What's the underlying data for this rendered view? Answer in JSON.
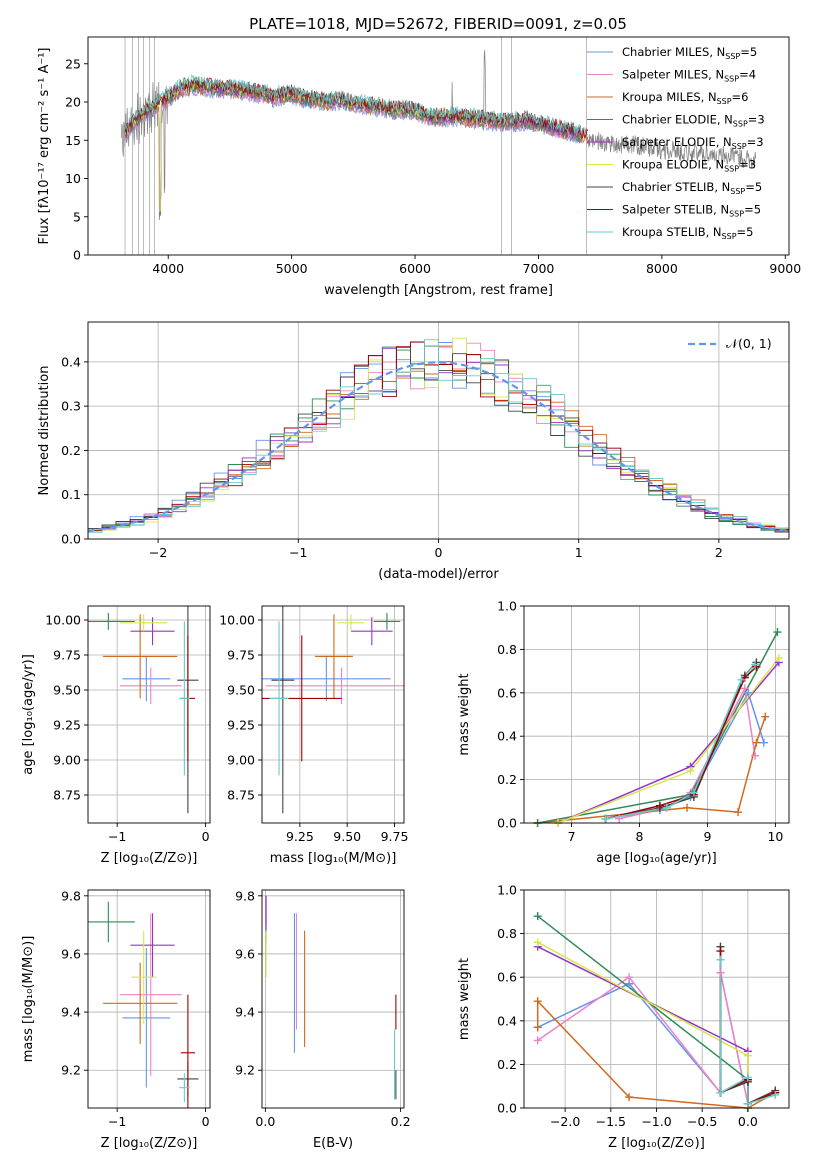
{
  "figure_title": "PLATE=1018, MJD=52672, FIBERID=0091, z=0.05",
  "colors": {
    "data": "#808080",
    "models": [
      "#6495ed",
      "#ee82c8",
      "#d2691e",
      "#2e8b57",
      "#9932cc",
      "#d4e84a",
      "#444444",
      "#a00000",
      "#66cccc"
    ],
    "gauss": "#6495ed"
  },
  "chart_data": [
    {
      "id": "spectrum",
      "type": "line",
      "title": "PLATE=1018, MJD=52672, FIBERID=0091, z=0.05",
      "xlabel": "wavelength [Angstrom, rest frame]",
      "ylabel": "Flux [fλ10⁻¹⁷ erg cm⁻² s⁻¹ A⁻¹]",
      "xlim": [
        3350,
        9030
      ],
      "ylim": [
        0,
        28.5
      ],
      "xticks": [
        4000,
        5000,
        6000,
        7000,
        8000,
        9000
      ],
      "yticks": [
        0,
        5,
        10,
        15,
        20,
        25
      ],
      "grid": false,
      "legend_position": "top-right",
      "legend": [
        {
          "label": "Chabrier MILES, N",
          "sub": "SSP",
          "suffix": "=5"
        },
        {
          "label": "Salpeter MILES, N",
          "sub": "SSP",
          "suffix": "=4"
        },
        {
          "label": "Kroupa MILES, N",
          "sub": "SSP",
          "suffix": "=6"
        },
        {
          "label": "Chabrier ELODIE, N",
          "sub": "SSP",
          "suffix": "=3"
        },
        {
          "label": "Salpeter ELODIE, N",
          "sub": "SSP",
          "suffix": "=3"
        },
        {
          "label": "Kroupa ELODIE, N",
          "sub": "SSP",
          "suffix": "=3"
        },
        {
          "label": "Chabrier STELIB, N",
          "sub": "SSP",
          "suffix": "=5"
        },
        {
          "label": "Salpeter STELIB, N",
          "sub": "SSP",
          "suffix": "=5"
        },
        {
          "label": "Kroupa STELIB, N",
          "sub": "SSP",
          "suffix": "=5"
        }
      ],
      "continuum": {
        "x": [
          3620,
          3700,
          3800,
          3900,
          4000,
          4100,
          4200,
          4300,
          4400,
          4500,
          4600,
          4700,
          4800,
          4850,
          4900,
          5000,
          5100,
          5200,
          5300,
          5400,
          5500,
          5600,
          5700,
          5800,
          5900,
          6000,
          6100,
          6200,
          6300,
          6400,
          6500,
          6600,
          6700,
          6800,
          6900,
          7000,
          7100,
          7200,
          7300,
          7400,
          7500,
          7600,
          7700,
          7800,
          8000,
          8200,
          8400,
          8600,
          8760
        ],
        "y": [
          15.0,
          17.0,
          18.5,
          19.5,
          20.5,
          21.8,
          22.2,
          22.0,
          21.8,
          21.7,
          21.5,
          21.3,
          21.0,
          20.5,
          20.8,
          21.0,
          20.5,
          20.3,
          20.0,
          20.2,
          19.8,
          19.6,
          19.4,
          19.0,
          19.0,
          18.8,
          18.2,
          18.0,
          18.1,
          17.9,
          17.8,
          17.6,
          17.5,
          17.4,
          17.6,
          17.2,
          16.8,
          16.3,
          16.0,
          15.2,
          14.8,
          14.6,
          14.5,
          14.3,
          13.8,
          13.5,
          13.2,
          12.8,
          12.5
        ]
      }
    },
    {
      "id": "residuals",
      "type": "histogram",
      "xlabel": "(data-model)/error",
      "ylabel": "Normed distribution",
      "xlim": [
        -2.5,
        2.5
      ],
      "ylim": [
        0,
        0.49
      ],
      "xticks": [
        -2,
        -1,
        0,
        1,
        2
      ],
      "yticks": [
        0.0,
        0.1,
        0.2,
        0.3,
        0.4
      ],
      "grid": true,
      "legend_position": "top-right",
      "legend": [
        "𝒩(0, 1)"
      ],
      "bin_width": 0.1
    },
    {
      "id": "age-vs-z",
      "type": "errorbar",
      "xlabel": "Z [log₁₀(Z/Z⊙)]",
      "ylabel": "age  [log₁₀(age/yr)]",
      "xlim": [
        -1.33,
        0.05
      ],
      "ylim": [
        8.55,
        10.1
      ],
      "xticks": [
        -1,
        0
      ],
      "yticks": [
        8.75,
        9.0,
        9.25,
        9.5,
        9.75,
        10.0
      ],
      "grid": true,
      "points": [
        {
          "x": -0.67,
          "xerr": 0.27,
          "y": 9.58,
          "yerr": 0.16
        },
        {
          "x": -0.62,
          "xerr": 0.35,
          "y": 9.53,
          "yerr": 0.13
        },
        {
          "x": -0.74,
          "xerr": 0.42,
          "y": 9.74,
          "yerr": 0.3
        },
        {
          "x": -1.1,
          "xerr": 0.3,
          "y": 9.99,
          "yerr": 0.06
        },
        {
          "x": -0.6,
          "xerr": 0.25,
          "y": 9.92,
          "yerr": 0.1
        },
        {
          "x": -0.7,
          "xerr": 0.27,
          "y": 9.98,
          "yerr": 0.06
        },
        {
          "x": -0.2,
          "xerr": 0.12,
          "y": 9.57,
          "yerr": 0.95
        },
        {
          "x": -0.2,
          "xerr": 0.08,
          "y": 9.44,
          "yerr": 0.45
        },
        {
          "x": -0.24,
          "xerr": 0.06,
          "y": 9.44,
          "yerr": 0.55
        }
      ]
    },
    {
      "id": "age-vs-mass",
      "type": "errorbar",
      "xlabel": "mass [log₁₀(M/M⊙)]",
      "ylabel": "",
      "xlim": [
        9.05,
        9.8
      ],
      "ylim": [
        8.55,
        10.1
      ],
      "xticks": [
        9.25,
        9.5,
        9.75
      ],
      "yticks": [
        8.75,
        9.0,
        9.25,
        9.5,
        9.75,
        10.0
      ],
      "grid": true,
      "points": [
        {
          "x": 9.39,
          "xerr": 0.34,
          "y": 9.58,
          "yerr": 0.16
        },
        {
          "x": 9.47,
          "xerr": 0.4,
          "y": 9.53,
          "yerr": 0.13
        },
        {
          "x": 9.43,
          "xerr": 0.1,
          "y": 9.74,
          "yerr": 0.3
        },
        {
          "x": 9.71,
          "xerr": 0.07,
          "y": 9.99,
          "yerr": 0.06
        },
        {
          "x": 9.63,
          "xerr": 0.11,
          "y": 9.92,
          "yerr": 0.1
        },
        {
          "x": 9.52,
          "xerr": 0.07,
          "y": 9.98,
          "yerr": 0.06
        },
        {
          "x": 9.16,
          "xerr": 0.06,
          "y": 9.57,
          "yerr": 0.95
        },
        {
          "x": 9.26,
          "xerr": 0.21,
          "y": 9.44,
          "yerr": 0.45
        },
        {
          "x": 9.14,
          "xerr": 0.05,
          "y": 9.44,
          "yerr": 0.55
        }
      ]
    },
    {
      "id": "weight-vs-age",
      "type": "line",
      "xlabel": "age  [log₁₀(age/yr)]",
      "ylabel": "mass weight",
      "xlim": [
        6.3,
        10.2
      ],
      "ylim": [
        0,
        1
      ],
      "xticks": [
        7,
        8,
        9,
        10
      ],
      "yticks": [
        0.0,
        0.2,
        0.4,
        0.6,
        0.8,
        1.0
      ],
      "grid": true,
      "series": [
        {
          "x": [
            7.5,
            8.3,
            8.75,
            9.6,
            9.83
          ],
          "y": [
            0.02,
            0.06,
            0.12,
            0.6,
            0.37
          ]
        },
        {
          "x": [
            7.7,
            8.4,
            8.75,
            9.55,
            9.7
          ],
          "y": [
            0.02,
            0.07,
            0.14,
            0.62,
            0.31
          ]
        },
        {
          "x": [
            6.5,
            8.7,
            9.45,
            9.72,
            9.85
          ],
          "y": [
            0.0,
            0.07,
            0.05,
            0.37,
            0.49
          ]
        },
        {
          "x": [
            6.5,
            8.75,
            10.03
          ],
          "y": [
            0.0,
            0.13,
            0.88
          ]
        },
        {
          "x": [
            6.8,
            8.75,
            10.05
          ],
          "y": [
            0.0,
            0.26,
            0.74
          ]
        },
        {
          "x": [
            6.8,
            8.75,
            10.05
          ],
          "y": [
            0.0,
            0.24,
            0.76
          ]
        },
        {
          "x": [
            7.5,
            8.3,
            8.8,
            9.55,
            9.72
          ],
          "y": [
            0.02,
            0.07,
            0.12,
            0.68,
            0.74
          ]
        },
        {
          "x": [
            7.5,
            8.3,
            8.8,
            9.55,
            9.72
          ],
          "y": [
            0.02,
            0.08,
            0.13,
            0.67,
            0.72
          ]
        },
        {
          "x": [
            7.5,
            8.4,
            8.8,
            9.5,
            9.7
          ],
          "y": [
            0.02,
            0.07,
            0.14,
            0.66,
            0.73
          ]
        }
      ]
    },
    {
      "id": "mass-vs-z",
      "type": "errorbar",
      "xlabel": "Z [log₁₀(Z/Z⊙)]",
      "ylabel": "mass [log₁₀(M/M⊙)]",
      "xlim": [
        -1.33,
        0.05
      ],
      "ylim": [
        9.07,
        9.82
      ],
      "xticks": [
        -1,
        0
      ],
      "yticks": [
        9.2,
        9.4,
        9.6,
        9.8
      ],
      "grid": true,
      "points": [
        {
          "x": -0.67,
          "xerr": 0.27,
          "y": 9.38,
          "yerr": 0.24
        },
        {
          "x": -0.62,
          "xerr": 0.35,
          "y": 9.46,
          "yerr": 0.28
        },
        {
          "x": -0.74,
          "xerr": 0.42,
          "y": 9.43,
          "yerr": 0.14
        },
        {
          "x": -1.1,
          "xerr": 0.3,
          "y": 9.71,
          "yerr": 0.07
        },
        {
          "x": -0.6,
          "xerr": 0.25,
          "y": 9.63,
          "yerr": 0.11
        },
        {
          "x": -0.7,
          "xerr": 0.14,
          "y": 9.52,
          "yerr": 0.16
        },
        {
          "x": -0.2,
          "xerr": 0.12,
          "y": 9.17,
          "yerr": 0.06
        },
        {
          "x": -0.2,
          "xerr": 0.08,
          "y": 9.26,
          "yerr": 0.2
        },
        {
          "x": -0.24,
          "xerr": 0.06,
          "y": 9.14,
          "yerr": 0.05
        }
      ]
    },
    {
      "id": "mass-vs-ebv",
      "type": "errorbar",
      "xlabel": "E(B-V)",
      "ylabel": "",
      "xlim": [
        -0.005,
        0.205
      ],
      "ylim": [
        9.07,
        9.82
      ],
      "xticks": [
        0.0,
        0.2
      ],
      "yticks": [
        9.2,
        9.4,
        9.6,
        9.8
      ],
      "grid": true,
      "points": [
        {
          "x": 0.043,
          "xerr": 0,
          "y": 9.5,
          "yerr": 0.24
        },
        {
          "x": 0.046,
          "xerr": 0,
          "y": 9.54,
          "yerr": 0.2
        },
        {
          "x": 0.058,
          "xerr": 0,
          "y": 9.48,
          "yerr": 0.2
        },
        {
          "x": 0.001,
          "xerr": 0,
          "y": 9.75,
          "yerr": 0.05
        },
        {
          "x": 0.001,
          "xerr": 0,
          "y": 9.72,
          "yerr": 0.08
        },
        {
          "x": 0.001,
          "xerr": 0,
          "y": 9.6,
          "yerr": 0.08
        },
        {
          "x": 0.193,
          "xerr": 0,
          "y": 9.15,
          "yerr": 0.05
        },
        {
          "x": 0.193,
          "xerr": 0,
          "y": 9.4,
          "yerr": 0.06
        },
        {
          "x": 0.191,
          "xerr": 0,
          "y": 9.22,
          "yerr": 0.12
        }
      ]
    },
    {
      "id": "weight-vs-z",
      "type": "line",
      "xlabel": "Z [log₁₀(Z/Z⊙)]",
      "ylabel": "mass weight",
      "xlim": [
        -2.45,
        0.45
      ],
      "ylim": [
        0,
        1
      ],
      "xticks": [
        -2.0,
        -1.5,
        -1.0,
        -0.5,
        0.0
      ],
      "yticks": [
        0.0,
        0.2,
        0.4,
        0.6,
        0.8,
        1.0
      ],
      "grid": true,
      "series": [
        {
          "x": [
            -2.3,
            -1.3,
            -0.3,
            -0.3,
            0.0,
            0.0
          ],
          "y": [
            0.37,
            0.57,
            0.07,
            0.62,
            0.02,
            0.12
          ]
        },
        {
          "x": [
            -2.3,
            -1.3,
            -0.3,
            -0.3,
            0.0
          ],
          "y": [
            0.31,
            0.6,
            0.07,
            0.62,
            0.02
          ]
        },
        {
          "x": [
            -2.3,
            -2.3,
            -1.3,
            0.0,
            0.3
          ],
          "y": [
            0.37,
            0.49,
            0.05,
            0.0,
            0.07
          ]
        },
        {
          "x": [
            -2.3,
            0.0,
            0.0
          ],
          "y": [
            0.88,
            0.13,
            0.0
          ]
        },
        {
          "x": [
            -2.3,
            0.0,
            0.0
          ],
          "y": [
            0.74,
            0.26,
            0.0
          ]
        },
        {
          "x": [
            -2.3,
            0.0,
            0.0
          ],
          "y": [
            0.76,
            0.24,
            0.0
          ]
        },
        {
          "x": [
            -0.3,
            -0.3,
            0.0,
            0.0,
            0.3
          ],
          "y": [
            0.74,
            0.07,
            0.12,
            0.02,
            0.08
          ]
        },
        {
          "x": [
            -0.3,
            -0.3,
            0.0,
            0.0,
            0.3
          ],
          "y": [
            0.72,
            0.07,
            0.13,
            0.02,
            0.07
          ]
        },
        {
          "x": [
            -0.3,
            -0.3,
            0.0,
            0.0,
            0.3
          ],
          "y": [
            0.68,
            0.07,
            0.14,
            0.02,
            0.06
          ]
        }
      ]
    }
  ]
}
